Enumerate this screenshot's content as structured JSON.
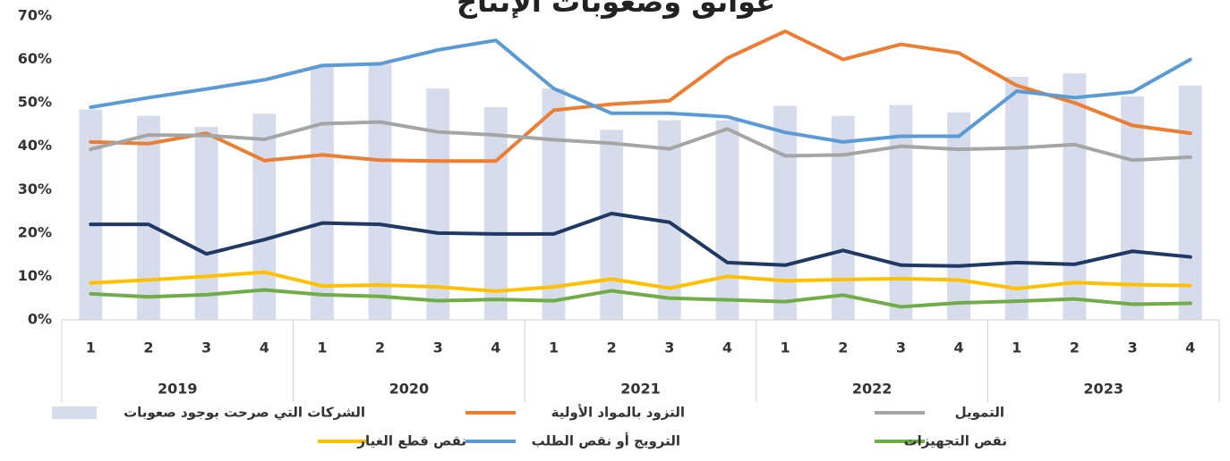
{
  "chart_data": {
    "type": "combo",
    "title": "عوائق وصعوبات الإنتاج",
    "categories": [
      "1",
      "2",
      "3",
      "4",
      "1",
      "2",
      "3",
      "4",
      "1",
      "2",
      "3",
      "4",
      "1",
      "2",
      "3",
      "4",
      "1",
      "2",
      "3",
      "4"
    ],
    "category_groups": [
      "2019",
      "2020",
      "2021",
      "2022",
      "2023"
    ],
    "ylim": [
      0,
      70
    ],
    "yticks": [
      {
        "value": 0,
        "label": "0%"
      },
      {
        "value": 10,
        "label": "10%"
      },
      {
        "value": 20,
        "label": "20%"
      },
      {
        "value": 30,
        "label": "30%"
      },
      {
        "value": 40,
        "label": "40%"
      },
      {
        "value": 50,
        "label": "50%"
      },
      {
        "value": 60,
        "label": "60%"
      },
      {
        "value": 70,
        "label": "70%"
      }
    ],
    "series": [
      {
        "name": "الشركات التي صرحت بوجود صعوبات",
        "type": "bar",
        "color": "#d6dceb",
        "values": [
          48.5,
          47,
          44.5,
          47.5,
          58.5,
          59,
          53.3,
          49,
          53.3,
          43.8,
          46,
          46,
          49.3,
          47,
          49.5,
          47.8,
          56,
          56.8,
          51.5,
          54
        ]
      },
      {
        "name": "التزود بالمواد الأولية",
        "type": "line",
        "color": "#ed7d31",
        "values": [
          41,
          40.6,
          43,
          36.7,
          38,
          36.8,
          36.6,
          36.6,
          48.3,
          49.7,
          50.5,
          60.3,
          66.5,
          60,
          63.5,
          61.5,
          54,
          50,
          44.8,
          43
        ]
      },
      {
        "name": "التمويل",
        "type": "line",
        "color": "#a5a5a5",
        "values": [
          39.3,
          42.6,
          42.5,
          41.6,
          45.2,
          45.6,
          43.3,
          42.6,
          41.5,
          40.7,
          39.4,
          44,
          37.8,
          38,
          40,
          39.3,
          39.6,
          40.4,
          36.8,
          37.5
        ]
      },
      {
        "type": "line",
        "color": "#203864",
        "values": [
          22,
          22,
          15.2,
          18.5,
          22.3,
          22,
          20,
          19.8,
          19.8,
          24.5,
          22.5,
          13.2,
          12.6,
          16,
          12.6,
          12.4,
          13.2,
          12.8,
          15.8,
          14.5
        ]
      },
      {
        "name": "نقص قطع الغيار",
        "type": "line",
        "color": "#ffc000",
        "values": [
          8.5,
          9.2,
          10,
          11,
          7.8,
          8,
          7.6,
          6.6,
          7.6,
          9.4,
          7.3,
          10,
          9,
          9.3,
          9.5,
          9.2,
          7.2,
          8.6,
          8.1,
          7.9
        ]
      },
      {
        "name": "الترويج أو نقص الطلب",
        "type": "line",
        "color": "#5b9bd5",
        "values": [
          49,
          51.2,
          53.2,
          55.3,
          58.6,
          59,
          62.2,
          64.4,
          53.3,
          47.6,
          47.6,
          46.8,
          43.2,
          41,
          42.3,
          42.3,
          52.7,
          51.2,
          52.5,
          60
        ]
      },
      {
        "name": "نقص التجهيزات",
        "type": "line",
        "color": "#70ad47",
        "values": [
          6,
          5.3,
          5.8,
          6.9,
          5.8,
          5.4,
          4.4,
          4.7,
          4.4,
          6.7,
          5,
          4.6,
          4.2,
          5.7,
          3,
          3.9,
          4.3,
          4.8,
          3.6,
          3.8
        ]
      }
    ]
  }
}
